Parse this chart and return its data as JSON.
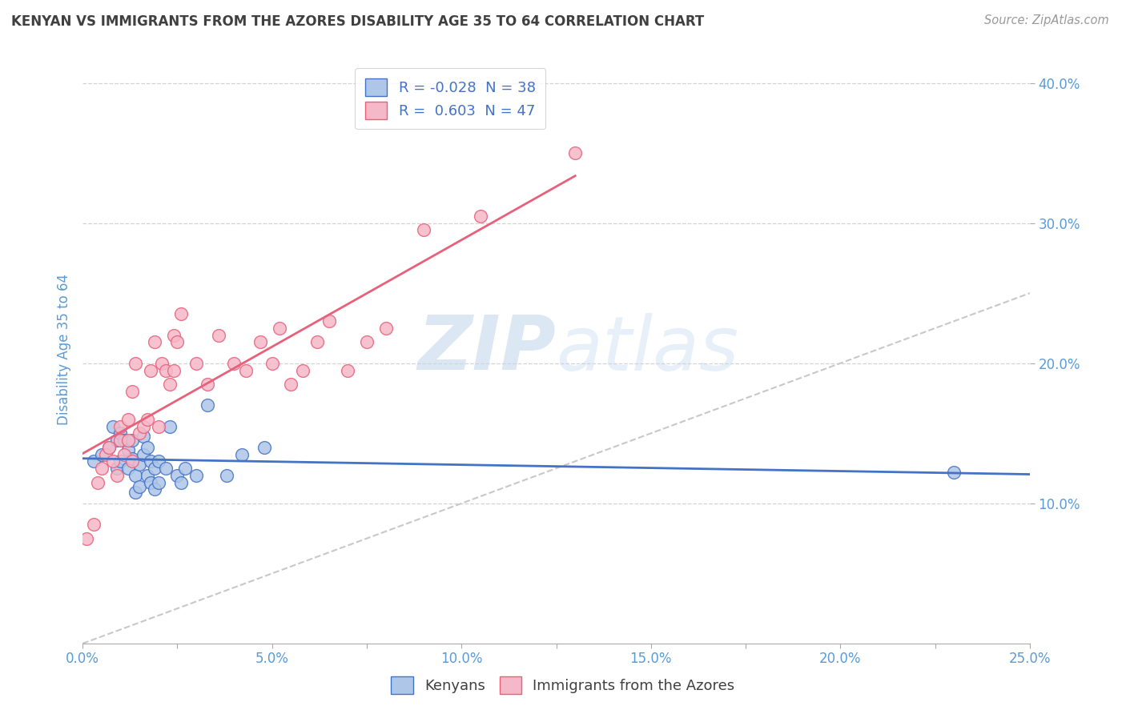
{
  "title": "KENYAN VS IMMIGRANTS FROM THE AZORES DISABILITY AGE 35 TO 64 CORRELATION CHART",
  "source": "Source: ZipAtlas.com",
  "ylabel": "Disability Age 35 to 64",
  "xlim": [
    0.0,
    0.25
  ],
  "ylim": [
    0.0,
    0.42
  ],
  "xticks": [
    0.0,
    0.025,
    0.05,
    0.075,
    0.1,
    0.125,
    0.15,
    0.175,
    0.2,
    0.225,
    0.25
  ],
  "xtick_labels_show": [
    0.0,
    0.05,
    0.1,
    0.15,
    0.2,
    0.25
  ],
  "yticks": [
    0.1,
    0.2,
    0.3,
    0.4
  ],
  "ytick_labels": [
    "10.0%",
    "20.0%",
    "30.0%",
    "40.0%"
  ],
  "xtick_labels": [
    "0.0%",
    "",
    "5.0%",
    "",
    "10.0%",
    "",
    "15.0%",
    "",
    "20.0%",
    "",
    "25.0%"
  ],
  "legend_r1": "R = -0.028  N = 38",
  "legend_r2": "R =  0.603  N = 47",
  "scatter_color_blue": "#aec6e8",
  "scatter_color_pink": "#f5b8c8",
  "line_color_blue": "#4472c4",
  "line_color_pink": "#e8607a",
  "diagonal_color": "#c8c8c8",
  "watermark_zip": "ZIP",
  "watermark_atlas": "atlas",
  "background_color": "#ffffff",
  "grid_color": "#c8c8c8",
  "title_color": "#404040",
  "axis_label_color": "#5b9bd5",
  "tick_color": "#5b9bd5",
  "kenyan_scatter_x": [
    0.003,
    0.005,
    0.007,
    0.008,
    0.009,
    0.009,
    0.01,
    0.01,
    0.011,
    0.012,
    0.012,
    0.013,
    0.013,
    0.014,
    0.014,
    0.015,
    0.015,
    0.016,
    0.016,
    0.017,
    0.017,
    0.018,
    0.018,
    0.019,
    0.019,
    0.02,
    0.02,
    0.022,
    0.023,
    0.025,
    0.026,
    0.027,
    0.03,
    0.033,
    0.038,
    0.042,
    0.048,
    0.23
  ],
  "kenyan_scatter_y": [
    0.13,
    0.135,
    0.14,
    0.155,
    0.125,
    0.145,
    0.13,
    0.15,
    0.145,
    0.125,
    0.138,
    0.132,
    0.145,
    0.108,
    0.12,
    0.112,
    0.128,
    0.135,
    0.148,
    0.12,
    0.14,
    0.115,
    0.13,
    0.11,
    0.125,
    0.115,
    0.13,
    0.125,
    0.155,
    0.12,
    0.115,
    0.125,
    0.12,
    0.17,
    0.12,
    0.135,
    0.14,
    0.122
  ],
  "azores_scatter_x": [
    0.001,
    0.003,
    0.004,
    0.005,
    0.006,
    0.007,
    0.008,
    0.009,
    0.01,
    0.01,
    0.011,
    0.012,
    0.012,
    0.013,
    0.013,
    0.014,
    0.015,
    0.016,
    0.017,
    0.018,
    0.019,
    0.02,
    0.021,
    0.022,
    0.023,
    0.024,
    0.024,
    0.025,
    0.026,
    0.03,
    0.033,
    0.036,
    0.04,
    0.043,
    0.047,
    0.05,
    0.052,
    0.055,
    0.058,
    0.062,
    0.065,
    0.07,
    0.075,
    0.08,
    0.09,
    0.105,
    0.13
  ],
  "azores_scatter_y": [
    0.075,
    0.085,
    0.115,
    0.125,
    0.135,
    0.14,
    0.13,
    0.12,
    0.145,
    0.155,
    0.135,
    0.145,
    0.16,
    0.13,
    0.18,
    0.2,
    0.15,
    0.155,
    0.16,
    0.195,
    0.215,
    0.155,
    0.2,
    0.195,
    0.185,
    0.195,
    0.22,
    0.215,
    0.235,
    0.2,
    0.185,
    0.22,
    0.2,
    0.195,
    0.215,
    0.2,
    0.225,
    0.185,
    0.195,
    0.215,
    0.23,
    0.195,
    0.215,
    0.225,
    0.295,
    0.305,
    0.35
  ]
}
